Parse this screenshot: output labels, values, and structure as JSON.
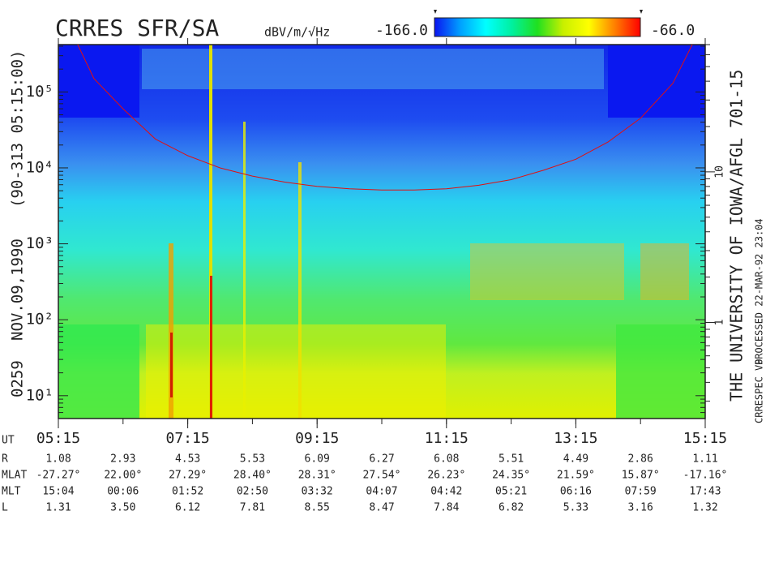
{
  "chart_data": {
    "type": "spectrogram",
    "title": "CRRES SFR/SA",
    "colorbar": {
      "label": "dBV/m/√Hz",
      "min": {
        "value": -166,
        "label": "-166.0"
      },
      "max": {
        "value": -66,
        "label": "-66.0"
      },
      "colors": [
        "#0a14f0",
        "#00a0ff",
        "#00ffff",
        "#00f0a0",
        "#20e020",
        "#c8f000",
        "#ffff00",
        "#ff8000",
        "#ff0000"
      ]
    },
    "left_labels": [
      "0259",
      "NOV.09,1990",
      "(90-313 05:15:00)"
    ],
    "right_labels": [
      "THE UNIVERSITY OF IOWA/AFGL 701-15",
      "PROCESSED 22-MAR-92  23:04",
      "CRRESPEC V0"
    ],
    "xlim": [
      5.25,
      15.25
    ],
    "xticks": [
      {
        "value": 5.25,
        "label": "05:15"
      },
      {
        "value": 7.25,
        "label": "07:15"
      },
      {
        "value": 9.25,
        "label": "09:15"
      },
      {
        "value": 11.25,
        "label": "11:15"
      },
      {
        "value": 13.25,
        "label": "13:15"
      },
      {
        "value": 15.25,
        "label": "15:15"
      }
    ],
    "log_y": true,
    "ylim": [
      5,
      420000
    ],
    "yticks": [
      {
        "value": 10,
        "label": "10¹"
      },
      {
        "value": 100,
        "label": "10²"
      },
      {
        "value": 1000,
        "label": "10³"
      },
      {
        "value": 10000,
        "label": "10⁴"
      },
      {
        "value": 100000,
        "label": "10⁵"
      }
    ],
    "y2lim": [
      0.23,
      70
    ],
    "y2ticks": [
      1,
      10
    ],
    "curve": {
      "color": "#e01010",
      "x": [
        5.55,
        5.8,
        6.25,
        6.75,
        7.25,
        7.75,
        8.25,
        8.75,
        9.25,
        9.75,
        10.25,
        10.75,
        11.25,
        11.75,
        12.25,
        12.75,
        13.25,
        13.75,
        14.25,
        14.75,
        15.05
      ],
      "values": [
        420000,
        150000,
        60000,
        24000,
        14500,
        10000,
        7800,
        6500,
        5700,
        5300,
        5100,
        5100,
        5300,
        5900,
        7000,
        9300,
        13000,
        22000,
        45000,
        130000,
        420000
      ]
    },
    "ephemeris": {
      "x_label": "UT",
      "rows": [
        {
          "label": "R",
          "values": [
            "1.08",
            "2.93",
            "4.53",
            "5.53",
            "6.09",
            "6.27",
            "6.08",
            "5.51",
            "4.49",
            "2.86",
            "1.11"
          ]
        },
        {
          "label": "MLAT",
          "values": [
            "-27.27°",
            "22.00°",
            "27.29°",
            "28.40°",
            "28.31°",
            "27.54°",
            "26.23°",
            "24.35°",
            "21.59°",
            "15.87°",
            "-17.16°"
          ]
        },
        {
          "label": "MLT",
          "values": [
            "15:04",
            "00:06",
            "01:52",
            "02:50",
            "03:32",
            "04:07",
            "04:42",
            "05:21",
            "06:16",
            "07:59",
            "17:43"
          ]
        },
        {
          "label": "L",
          "values": [
            "1.31",
            "3.50",
            "6.12",
            "7.81",
            "8.55",
            "8.47",
            "7.84",
            "6.82",
            "5.33",
            "3.16",
            "1.32"
          ]
        }
      ]
    }
  }
}
